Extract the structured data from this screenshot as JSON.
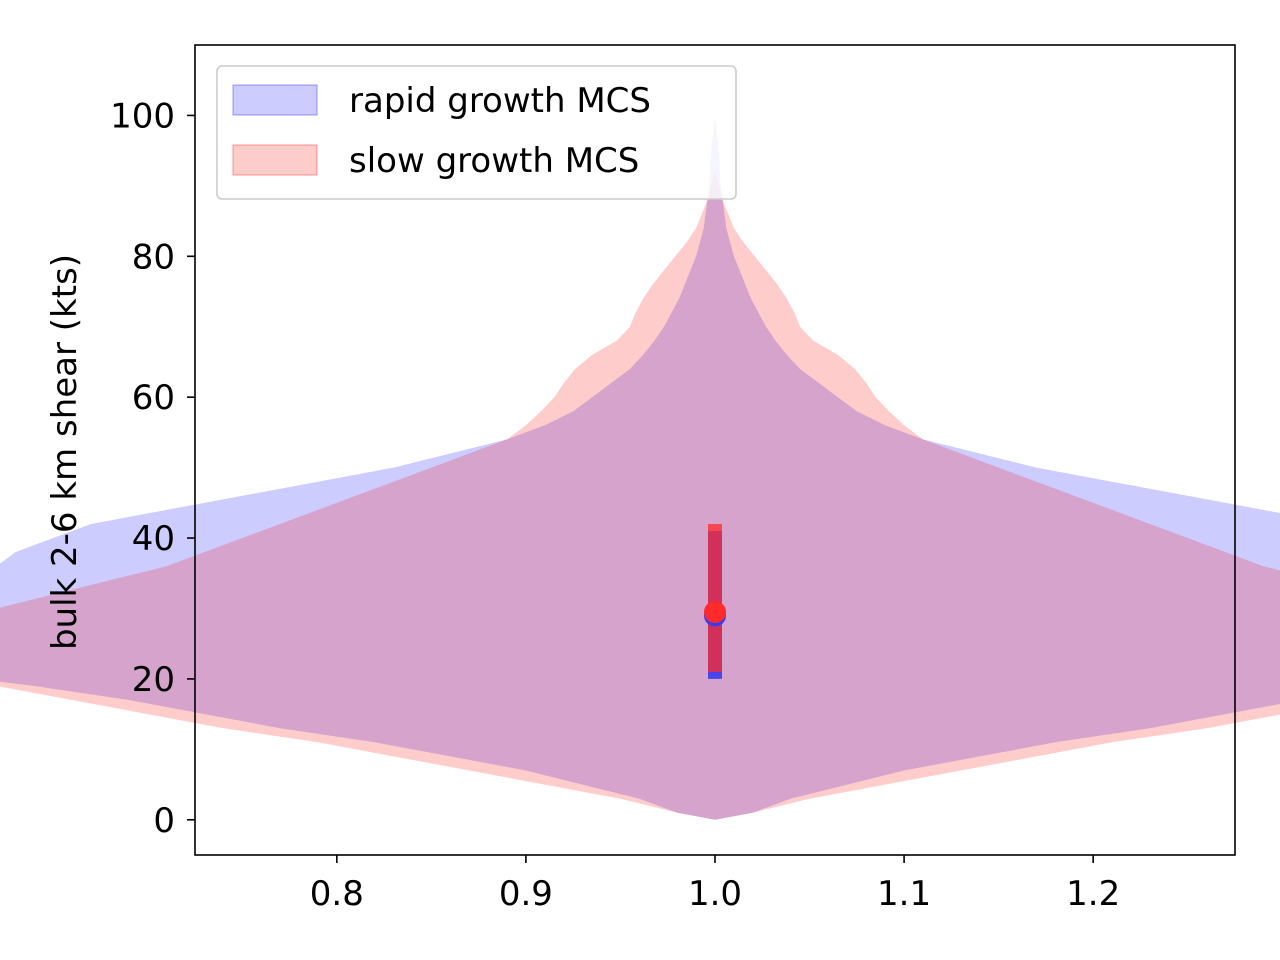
{
  "chart_data": {
    "type": "violin",
    "title": "",
    "xlabel": "",
    "ylabel": "bulk 2-6 km shear (kts)",
    "xlim": [
      0.725,
      1.275
    ],
    "ylim": [
      -5,
      110
    ],
    "x_ticks": [
      0.8,
      0.9,
      1.0,
      1.1,
      1.2
    ],
    "x_tick_labels": [
      "0.8",
      "0.9",
      "1.0",
      "1.1",
      "1.2"
    ],
    "y_ticks": [
      0,
      20,
      40,
      60,
      80,
      100
    ],
    "y_tick_labels": [
      "0",
      "20",
      "40",
      "60",
      "80",
      "100"
    ],
    "grid": false,
    "legend_position": "upper-left",
    "violin_center": 1.0,
    "series": [
      {
        "name": "rapid growth MCS",
        "color": "#0000ff",
        "fill_opacity": 0.2,
        "stat_color": "#3a3aee",
        "median": 29,
        "q1": 20,
        "q3": 41,
        "profile": [
          [
            0,
            0.0
          ],
          [
            1,
            0.02
          ],
          [
            3,
            0.04
          ],
          [
            5,
            0.07
          ],
          [
            7,
            0.1
          ],
          [
            9,
            0.14
          ],
          [
            11,
            0.18
          ],
          [
            13,
            0.23
          ],
          [
            15,
            0.27
          ],
          [
            17,
            0.31
          ],
          [
            19,
            0.36
          ],
          [
            21,
            0.42
          ],
          [
            22,
            0.46
          ],
          [
            23,
            0.5
          ],
          [
            24,
            0.48
          ],
          [
            26,
            0.44
          ],
          [
            28,
            0.42
          ],
          [
            30,
            0.41
          ],
          [
            32,
            0.4
          ],
          [
            34,
            0.39
          ],
          [
            36,
            0.38
          ],
          [
            38,
            0.37
          ],
          [
            40,
            0.35
          ],
          [
            42,
            0.33
          ],
          [
            44,
            0.29
          ],
          [
            46,
            0.25
          ],
          [
            48,
            0.21
          ],
          [
            50,
            0.17
          ],
          [
            52,
            0.14
          ],
          [
            54,
            0.11
          ],
          [
            56,
            0.09
          ],
          [
            58,
            0.075
          ],
          [
            60,
            0.065
          ],
          [
            62,
            0.055
          ],
          [
            64,
            0.045
          ],
          [
            66,
            0.038
          ],
          [
            68,
            0.032
          ],
          [
            70,
            0.027
          ],
          [
            72,
            0.023
          ],
          [
            74,
            0.019
          ],
          [
            76,
            0.016
          ],
          [
            78,
            0.013
          ],
          [
            80,
            0.01
          ],
          [
            82,
            0.008
          ],
          [
            84,
            0.006
          ],
          [
            86,
            0.005
          ],
          [
            88,
            0.004
          ],
          [
            90,
            0.003
          ],
          [
            95,
            0.002
          ],
          [
            100,
            0.0
          ]
        ]
      },
      {
        "name": "slow growth MCS",
        "color": "#ff0000",
        "fill_opacity": 0.2,
        "stat_color": "#ff2a2a",
        "median": 29.5,
        "q1": 21,
        "q3": 42,
        "profile": [
          [
            0,
            0.0
          ],
          [
            1,
            0.02
          ],
          [
            3,
            0.05
          ],
          [
            5,
            0.09
          ],
          [
            7,
            0.13
          ],
          [
            9,
            0.17
          ],
          [
            11,
            0.21
          ],
          [
            13,
            0.26
          ],
          [
            15,
            0.3
          ],
          [
            17,
            0.34
          ],
          [
            19,
            0.38
          ],
          [
            21,
            0.42
          ],
          [
            23,
            0.45
          ],
          [
            25,
            0.47
          ],
          [
            26,
            0.48
          ],
          [
            27,
            0.47
          ],
          [
            28,
            0.45
          ],
          [
            29,
            0.41
          ],
          [
            30,
            0.38
          ],
          [
            32,
            0.35
          ],
          [
            34,
            0.32
          ],
          [
            36,
            0.29
          ],
          [
            38,
            0.27
          ],
          [
            40,
            0.25
          ],
          [
            42,
            0.23
          ],
          [
            44,
            0.21
          ],
          [
            46,
            0.19
          ],
          [
            48,
            0.17
          ],
          [
            50,
            0.15
          ],
          [
            52,
            0.13
          ],
          [
            54,
            0.11
          ],
          [
            56,
            0.1
          ],
          [
            58,
            0.092
          ],
          [
            60,
            0.085
          ],
          [
            62,
            0.08
          ],
          [
            64,
            0.074
          ],
          [
            66,
            0.065
          ],
          [
            68,
            0.052
          ],
          [
            70,
            0.045
          ],
          [
            72,
            0.042
          ],
          [
            74,
            0.038
          ],
          [
            76,
            0.033
          ],
          [
            78,
            0.027
          ],
          [
            80,
            0.021
          ],
          [
            82,
            0.015
          ],
          [
            84,
            0.01
          ],
          [
            86,
            0.007
          ],
          [
            88,
            0.004
          ],
          [
            90,
            0.002
          ],
          [
            92,
            0.0
          ]
        ]
      }
    ]
  }
}
